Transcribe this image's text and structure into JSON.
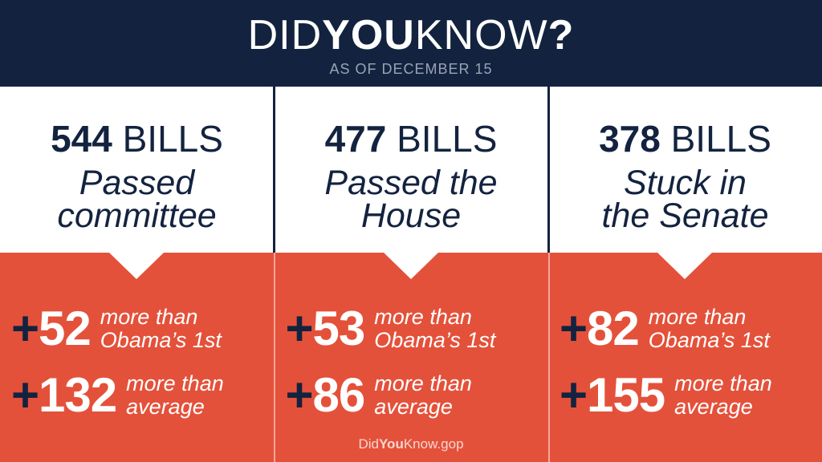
{
  "header": {
    "title": {
      "part1": "DID",
      "part2": "YOU",
      "part3": "KNOW",
      "part4": "?"
    },
    "subtitle": "AS OF DECEMBER 15"
  },
  "columns": [
    {
      "count": "544",
      "unit": "BILLS",
      "description": [
        "Passed",
        "committee"
      ],
      "comparisons": [
        {
          "sign": "+",
          "value": "52",
          "text": [
            "more than",
            "Obama’s 1st"
          ]
        },
        {
          "sign": "+",
          "value": "132",
          "text": [
            "more than",
            "average"
          ]
        }
      ]
    },
    {
      "count": "477",
      "unit": "BILLS",
      "description": [
        "Passed the",
        "House"
      ],
      "comparisons": [
        {
          "sign": "+",
          "value": "53",
          "text": [
            "more than",
            "Obama’s 1st"
          ]
        },
        {
          "sign": "+",
          "value": "86",
          "text": [
            "more than",
            "average"
          ]
        }
      ]
    },
    {
      "count": "378",
      "unit": "BILLS",
      "description": [
        "Stuck in",
        "the Senate"
      ],
      "comparisons": [
        {
          "sign": "+",
          "value": "82",
          "text": [
            "more than",
            "Obama’s 1st"
          ]
        },
        {
          "sign": "+",
          "value": "155",
          "text": [
            "more than",
            "average"
          ]
        }
      ]
    }
  ],
  "footer": {
    "part1": "Did",
    "part2": "You",
    "part3": "Know.gop"
  }
}
